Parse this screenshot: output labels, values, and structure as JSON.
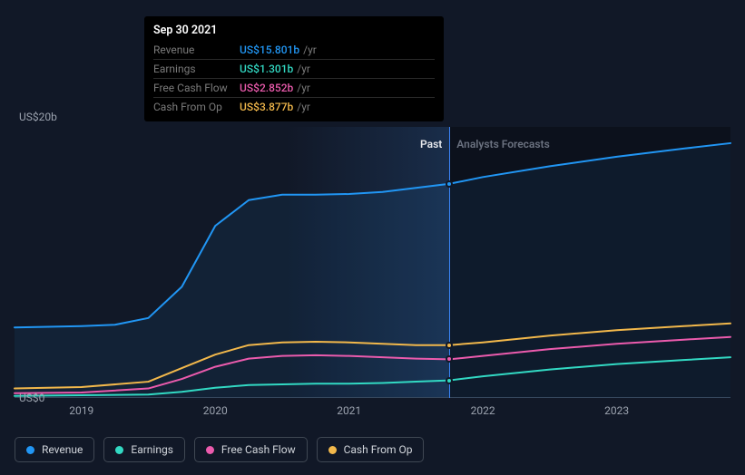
{
  "chart": {
    "type": "line",
    "background": "#111827",
    "future_shade": "rgba(0,0,0,0.28)",
    "grid_color": "#374151",
    "text_color": "#9ca3af",
    "label_fontsize": 12,
    "y_axis": {
      "min": 0,
      "max": 20,
      "ticks": [
        {
          "value": 0,
          "label": "US$0"
        },
        {
          "value": 20,
          "label": "US$20b"
        }
      ]
    },
    "x_axis": {
      "min": 2018.5,
      "max": 2023.85,
      "ticks": [
        2019,
        2020,
        2021,
        2022,
        2023
      ]
    },
    "cursor_x": 2021.75,
    "past_label": "Past",
    "future_label": "Analysts Forecasts",
    "series": [
      {
        "key": "revenue",
        "label": "Revenue",
        "color": "#2196f4",
        "marker_at_cursor": 15.8,
        "points": [
          [
            2018.5,
            5.2
          ],
          [
            2019.0,
            5.3
          ],
          [
            2019.25,
            5.4
          ],
          [
            2019.5,
            5.9
          ],
          [
            2019.75,
            8.2
          ],
          [
            2020.0,
            12.7
          ],
          [
            2020.25,
            14.6
          ],
          [
            2020.5,
            15.0
          ],
          [
            2020.75,
            15.0
          ],
          [
            2021.0,
            15.05
          ],
          [
            2021.25,
            15.2
          ],
          [
            2021.5,
            15.5
          ],
          [
            2021.75,
            15.8
          ],
          [
            2022.0,
            16.3
          ],
          [
            2022.5,
            17.1
          ],
          [
            2023.0,
            17.8
          ],
          [
            2023.5,
            18.4
          ],
          [
            2023.85,
            18.8
          ]
        ]
      },
      {
        "key": "cash_from_op",
        "label": "Cash From Op",
        "color": "#f2b84b",
        "marker_at_cursor": 3.9,
        "points": [
          [
            2018.5,
            0.7
          ],
          [
            2019.0,
            0.8
          ],
          [
            2019.5,
            1.2
          ],
          [
            2019.75,
            2.2
          ],
          [
            2020.0,
            3.2
          ],
          [
            2020.25,
            3.9
          ],
          [
            2020.5,
            4.1
          ],
          [
            2020.75,
            4.15
          ],
          [
            2021.0,
            4.1
          ],
          [
            2021.25,
            4.0
          ],
          [
            2021.5,
            3.9
          ],
          [
            2021.75,
            3.9
          ],
          [
            2022.0,
            4.1
          ],
          [
            2022.5,
            4.6
          ],
          [
            2023.0,
            5.0
          ],
          [
            2023.5,
            5.3
          ],
          [
            2023.85,
            5.5
          ]
        ]
      },
      {
        "key": "free_cash_flow",
        "label": "Free Cash Flow",
        "color": "#eb5bad",
        "marker_at_cursor": 2.85,
        "points": [
          [
            2018.5,
            0.35
          ],
          [
            2019.0,
            0.4
          ],
          [
            2019.5,
            0.7
          ],
          [
            2019.75,
            1.4
          ],
          [
            2020.0,
            2.3
          ],
          [
            2020.25,
            2.9
          ],
          [
            2020.5,
            3.1
          ],
          [
            2020.75,
            3.15
          ],
          [
            2021.0,
            3.1
          ],
          [
            2021.25,
            3.0
          ],
          [
            2021.5,
            2.9
          ],
          [
            2021.75,
            2.85
          ],
          [
            2022.0,
            3.1
          ],
          [
            2022.5,
            3.6
          ],
          [
            2023.0,
            4.0
          ],
          [
            2023.5,
            4.3
          ],
          [
            2023.85,
            4.5
          ]
        ]
      },
      {
        "key": "earnings",
        "label": "Earnings",
        "color": "#32d9c3",
        "marker_at_cursor": 1.3,
        "points": [
          [
            2018.5,
            0.15
          ],
          [
            2019.0,
            0.2
          ],
          [
            2019.5,
            0.25
          ],
          [
            2019.75,
            0.45
          ],
          [
            2020.0,
            0.75
          ],
          [
            2020.25,
            0.95
          ],
          [
            2020.5,
            1.0
          ],
          [
            2020.75,
            1.05
          ],
          [
            2021.0,
            1.05
          ],
          [
            2021.25,
            1.1
          ],
          [
            2021.5,
            1.2
          ],
          [
            2021.75,
            1.3
          ],
          [
            2022.0,
            1.6
          ],
          [
            2022.5,
            2.1
          ],
          [
            2023.0,
            2.5
          ],
          [
            2023.5,
            2.8
          ],
          [
            2023.85,
            3.0
          ]
        ]
      }
    ]
  },
  "tooltip": {
    "title": "Sep 30 2021",
    "unit": "/yr",
    "rows": [
      {
        "label": "Revenue",
        "value": "US$15.801b",
        "color": "#2196f4"
      },
      {
        "label": "Earnings",
        "value": "US$1.301b",
        "color": "#32d9c3"
      },
      {
        "label": "Free Cash Flow",
        "value": "US$2.852b",
        "color": "#eb5bad"
      },
      {
        "label": "Cash From Op",
        "value": "US$3.877b",
        "color": "#f2b84b"
      }
    ]
  },
  "legend": [
    {
      "label": "Revenue",
      "color": "#2196f4"
    },
    {
      "label": "Earnings",
      "color": "#32d9c3"
    },
    {
      "label": "Free Cash Flow",
      "color": "#eb5bad"
    },
    {
      "label": "Cash From Op",
      "color": "#f2b84b"
    }
  ]
}
